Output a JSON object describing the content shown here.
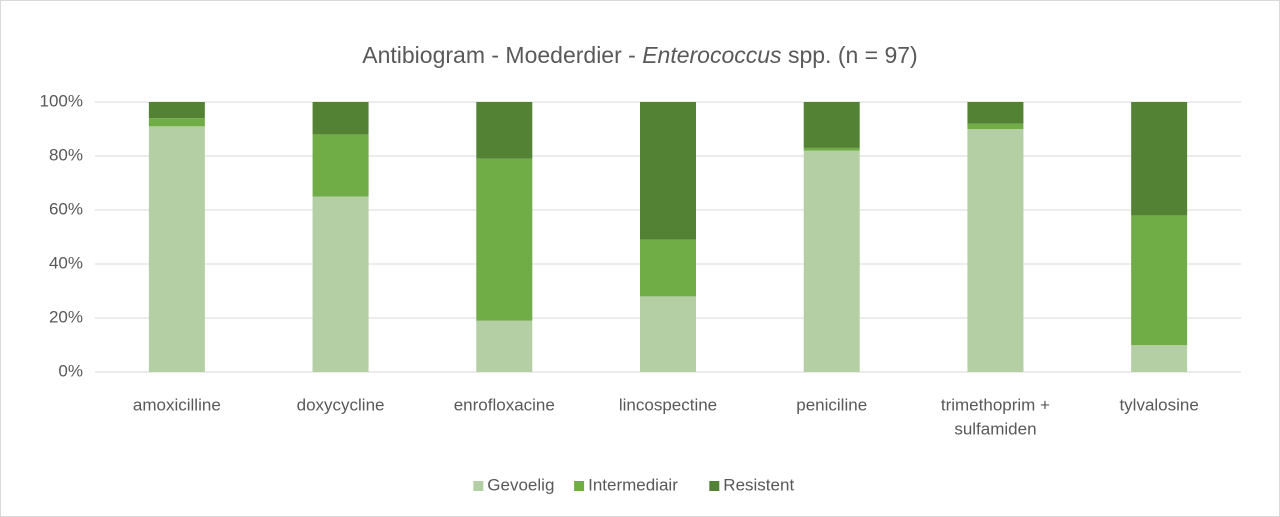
{
  "chart_data": {
    "type": "stacked_bar",
    "title_parts": [
      "Antibiogram - Moederdier - ",
      "Enterococcus",
      " spp. (n = 97)"
    ],
    "categories": [
      [
        "amoxicilline"
      ],
      [
        "doxycycline"
      ],
      [
        "enrofloxacine"
      ],
      [
        "lincospectine"
      ],
      [
        "peniciline"
      ],
      [
        "trimethoprim +",
        "sulfamiden"
      ],
      [
        "tylvalosine"
      ]
    ],
    "series": [
      {
        "name": "Gevoelig",
        "color": "#b4cfa4",
        "values": [
          91,
          65,
          19,
          28,
          82,
          90,
          10
        ]
      },
      {
        "name": "Intermediair",
        "color": "#70ad47",
        "values": [
          3,
          23,
          60,
          21,
          1,
          2,
          48
        ]
      },
      {
        "name": "Resistent",
        "color": "#548235",
        "values": [
          6,
          12,
          21,
          51,
          17,
          8,
          42
        ]
      }
    ],
    "ylim": [
      0,
      100
    ],
    "yticks": [
      {
        "value": 0,
        "label": "0%"
      },
      {
        "value": 20,
        "label": "20%"
      },
      {
        "value": 40,
        "label": "40%"
      },
      {
        "value": 60,
        "label": "60%"
      },
      {
        "value": 80,
        "label": "80%"
      },
      {
        "value": 100,
        "label": "100%"
      }
    ],
    "grid": true,
    "legend": "bottom"
  }
}
